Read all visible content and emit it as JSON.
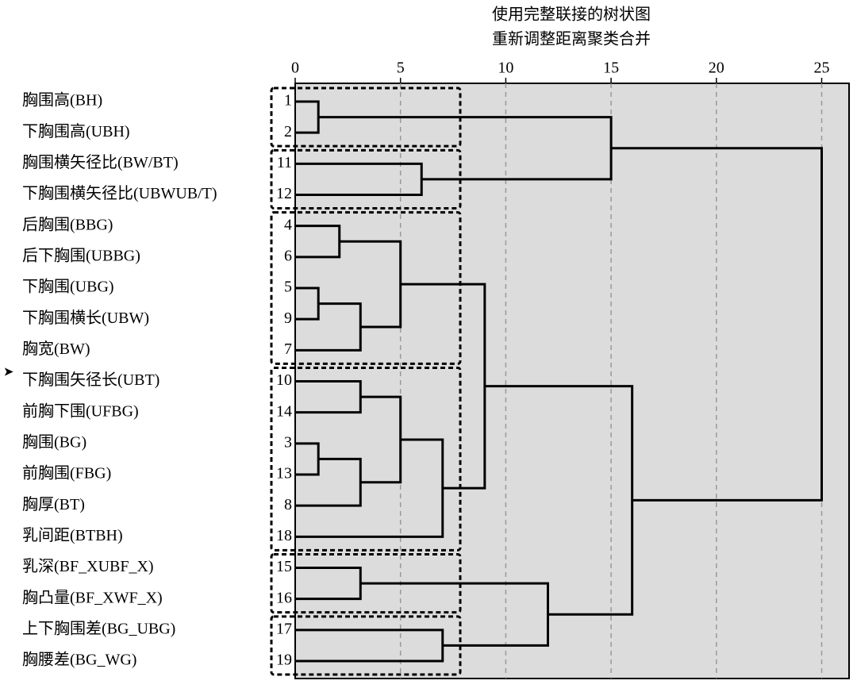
{
  "chart_data": {
    "type": "dendrogram",
    "title": [
      "使用完整联接的树状图",
      "重新调整距离聚类合并"
    ],
    "labels": [
      "胸围高(BH)",
      "下胸围高(UBH)",
      "胸围横矢径比(BW/BT)",
      "下胸围横矢径比(UBWUB/T)",
      "后胸围(BBG)",
      "后下胸围(UBBG)",
      "下胸围(UBG)",
      "下胸围横长(UBW)",
      "胸宽(BW)",
      "下胸围矢径长(UBT)",
      "前胸下围(UFBG)",
      "胸围(BG)",
      "前胸围(FBG)",
      "胸厚(BT)",
      "乳间距(BTBH)",
      "乳深(BF_XUBF_X)",
      "胸凸量(BF_XWF_X)",
      "上下胸围差(BG_UBG)",
      "胸腰差(BG_WG)"
    ],
    "leaf_ids": [
      1,
      2,
      11,
      12,
      4,
      6,
      5,
      9,
      7,
      10,
      14,
      3,
      13,
      8,
      18,
      15,
      16,
      17,
      19
    ],
    "merges": [
      [
        0,
        1,
        1.1
      ],
      [
        2,
        3,
        6.0
      ],
      [
        19,
        20,
        15.0
      ],
      [
        4,
        5,
        2.1
      ],
      [
        6,
        7,
        1.1
      ],
      [
        23,
        8,
        3.1
      ],
      [
        22,
        24,
        5.0
      ],
      [
        9,
        10,
        3.1
      ],
      [
        11,
        12,
        1.1
      ],
      [
        27,
        13,
        3.1
      ],
      [
        26,
        28,
        5.0
      ],
      [
        29,
        14,
        7.0
      ],
      [
        25,
        30,
        9.0
      ],
      [
        15,
        16,
        3.1
      ],
      [
        17,
        18,
        7.0
      ],
      [
        32,
        33,
        12.0
      ],
      [
        31,
        34,
        16.0
      ],
      [
        21,
        35,
        25.0
      ]
    ],
    "xlim": [
      0,
      26.3
    ],
    "xticks": [
      0,
      5,
      10,
      15,
      20,
      25
    ],
    "grid": true,
    "color": "#000000"
  }
}
